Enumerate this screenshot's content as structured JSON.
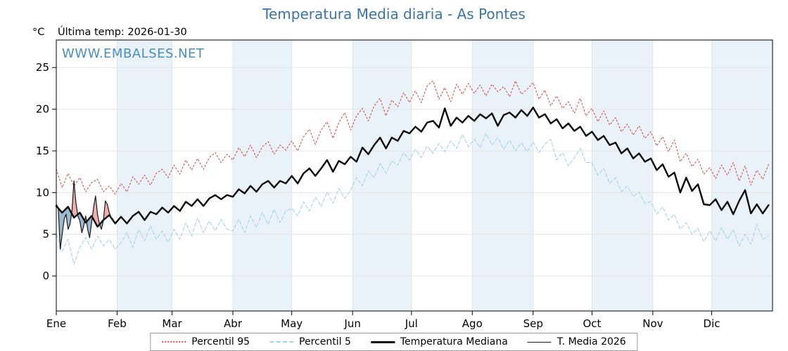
{
  "page": {
    "title": "Temperatura Media diaria - As Pontes",
    "y_unit_label": "°C",
    "last_temp_label": "Última temp: 2026-01-30",
    "watermark": "WWW.EMBALSES.NET",
    "title_color": "#3a74a8",
    "watermark_color": "#4a8dbf"
  },
  "legend": {
    "items": [
      {
        "label": "Percentil 95",
        "style": "dotted",
        "color": "#d94f4f"
      },
      {
        "label": "Percentil 5",
        "style": "dashed",
        "color": "#a6d3e3"
      },
      {
        "label": "Temperatura Mediana",
        "style": "solid-thick",
        "color": "#0a0a0a"
      },
      {
        "label": "T. Media 2026",
        "style": "solid-thin",
        "color": "#1a1a1a"
      }
    ]
  },
  "chart_data": {
    "type": "line",
    "title": "Temperatura Media diaria - As Pontes",
    "ylabel": "°C",
    "ylim": [
      -4.2,
      28.3
    ],
    "yticks": [
      0,
      5,
      10,
      15,
      20,
      25
    ],
    "x_months": [
      "Ene",
      "Feb",
      "Mar",
      "Abr",
      "May",
      "Jun",
      "Jul",
      "Ago",
      "Sep",
      "Oct",
      "Nov",
      "Dic"
    ],
    "month_start_days": [
      0,
      31,
      59,
      90,
      120,
      151,
      181,
      212,
      243,
      273,
      304,
      334
    ],
    "days_total": 365,
    "sample_step_days": 3,
    "band_color": "#e9f2f8",
    "grid_color": "#e4e4e4",
    "fill_above_color": "#ee9e9e",
    "fill_below_color": "#88aac8",
    "series": [
      {
        "name": "Percentil 95",
        "color": "#d94f4f",
        "dash": "2 3",
        "width": 1.1,
        "values": [
          12.8,
          10.6,
          12.3,
          10.8,
          11.8,
          10.1,
          11.2,
          11.6,
          10.1,
          10.8,
          9.8,
          11.1,
          10.1,
          11.9,
          11.0,
          12.1,
          10.9,
          12.3,
          12.8,
          11.8,
          13.3,
          12.2,
          13.9,
          12.7,
          14.1,
          12.8,
          14.2,
          14.8,
          13.6,
          14.6,
          13.9,
          15.4,
          14.3,
          15.7,
          14.2,
          15.5,
          16.1,
          14.6,
          15.7,
          15.1,
          16.2,
          15.0,
          16.7,
          17.6,
          15.8,
          17.5,
          18.5,
          16.5,
          18.4,
          19.6,
          17.5,
          19.2,
          20.1,
          18.6,
          20.4,
          21.3,
          19.2,
          21.1,
          20.3,
          22.0,
          20.8,
          22.2,
          20.8,
          22.8,
          23.4,
          21.2,
          22.6,
          20.9,
          23.0,
          21.8,
          23.1,
          21.9,
          22.9,
          21.6,
          23.0,
          22.1,
          22.7,
          21.5,
          23.4,
          21.8,
          22.4,
          23.2,
          21.2,
          22.3,
          20.4,
          21.6,
          20.1,
          20.9,
          19.5,
          21.3,
          19.2,
          20.1,
          18.5,
          19.8,
          18.1,
          19.0,
          17.3,
          18.2,
          16.9,
          18.0,
          16.5,
          17.3,
          15.6,
          16.7,
          14.9,
          16.3,
          13.7,
          14.7,
          13.1,
          14.0,
          12.2,
          13.0,
          11.7,
          13.3,
          12.1,
          13.6,
          11.4,
          13.2,
          10.9,
          12.7,
          11.6,
          13.4
        ]
      },
      {
        "name": "Percentil 5",
        "color": "#a6d3e3",
        "dash": "5 3",
        "width": 1.1,
        "values": [
          5.0,
          3.0,
          4.4,
          1.4,
          3.4,
          4.6,
          3.2,
          4.8,
          3.6,
          4.4,
          3.2,
          4.0,
          5.2,
          3.4,
          5.6,
          4.2,
          6.0,
          4.4,
          5.4,
          4.0,
          5.6,
          4.4,
          6.4,
          4.8,
          7.0,
          5.2,
          6.6,
          5.4,
          6.8,
          5.6,
          5.4,
          6.8,
          5.2,
          7.2,
          5.8,
          7.6,
          6.2,
          8.0,
          6.4,
          7.8,
          8.1,
          7.2,
          8.9,
          7.8,
          9.5,
          8.3,
          10.1,
          8.7,
          10.5,
          9.3,
          10.3,
          11.8,
          10.8,
          12.6,
          11.8,
          13.5,
          12.3,
          13.8,
          13.3,
          14.8,
          13.9,
          15.2,
          14.2,
          15.6,
          14.7,
          15.9,
          14.9,
          16.2,
          15.3,
          17.0,
          15.5,
          16.4,
          15.4,
          17.1,
          15.7,
          16.6,
          15.2,
          16.3,
          15.0,
          16.0,
          14.9,
          16.1,
          14.8,
          15.8,
          16.4,
          13.9,
          14.8,
          13.2,
          14.2,
          15.3,
          13.6,
          13.6,
          12.1,
          12.9,
          11.1,
          11.8,
          10.1,
          10.8,
          9.5,
          10.1,
          8.7,
          8.9,
          7.4,
          8.3,
          6.7,
          7.4,
          5.6,
          6.4,
          5.0,
          5.7,
          4.1,
          5.4,
          4.2,
          5.8,
          4.4,
          5.6,
          3.6,
          5.0,
          3.8,
          6.2,
          4.4,
          4.8
        ]
      },
      {
        "name": "Temperatura Mediana",
        "color": "#0a0a0a",
        "dash": null,
        "width": 2.4,
        "values": [
          8.4,
          7.6,
          8.3,
          7.0,
          7.6,
          6.4,
          7.2,
          5.9,
          6.7,
          7.3,
          6.3,
          7.1,
          6.3,
          7.2,
          7.7,
          6.7,
          7.7,
          7.4,
          8.2,
          7.6,
          8.4,
          7.8,
          8.9,
          8.4,
          9.2,
          8.4,
          9.3,
          9.7,
          9.2,
          9.7,
          9.5,
          10.4,
          9.9,
          10.8,
          10.1,
          11.0,
          11.4,
          10.6,
          11.4,
          11.1,
          12.0,
          11.1,
          12.3,
          12.9,
          12.0,
          12.9,
          13.9,
          12.5,
          13.8,
          13.4,
          14.3,
          13.7,
          15.4,
          14.6,
          15.7,
          16.6,
          15.3,
          16.6,
          16.2,
          17.4,
          17.1,
          17.9,
          17.3,
          18.4,
          18.6,
          17.8,
          20.1,
          18.0,
          19.0,
          18.4,
          19.2,
          18.6,
          19.4,
          18.9,
          19.5,
          18.0,
          19.3,
          19.6,
          19.0,
          19.9,
          19.2,
          20.2,
          19.0,
          19.4,
          18.3,
          18.8,
          17.7,
          18.3,
          17.4,
          17.9,
          16.8,
          17.3,
          16.3,
          16.8,
          15.7,
          16.0,
          14.7,
          15.3,
          14.1,
          14.7,
          13.7,
          14.1,
          12.7,
          13.4,
          11.9,
          12.4,
          10.0,
          11.8,
          10.2,
          11.0,
          8.6,
          8.5,
          9.2,
          7.9,
          8.9,
          7.4,
          9.0,
          10.3,
          7.5,
          8.6,
          7.5,
          8.5
        ]
      },
      {
        "name": "T. Media 2026",
        "color": "#1a1a1a",
        "dash": null,
        "width": 1.2,
        "step_days": 1,
        "values": [
          8.6,
          8.2,
          3.2,
          5.0,
          6.8,
          7.4,
          5.6,
          6.2,
          7.8,
          11.4,
          8.8,
          7.2,
          6.6,
          5.2,
          6.0,
          7.2,
          5.6,
          4.6,
          6.4,
          8.2,
          9.6,
          7.4,
          6.2,
          5.6,
          6.6,
          9.0,
          8.6,
          7.6,
          7.0,
          6.8
        ]
      }
    ]
  }
}
